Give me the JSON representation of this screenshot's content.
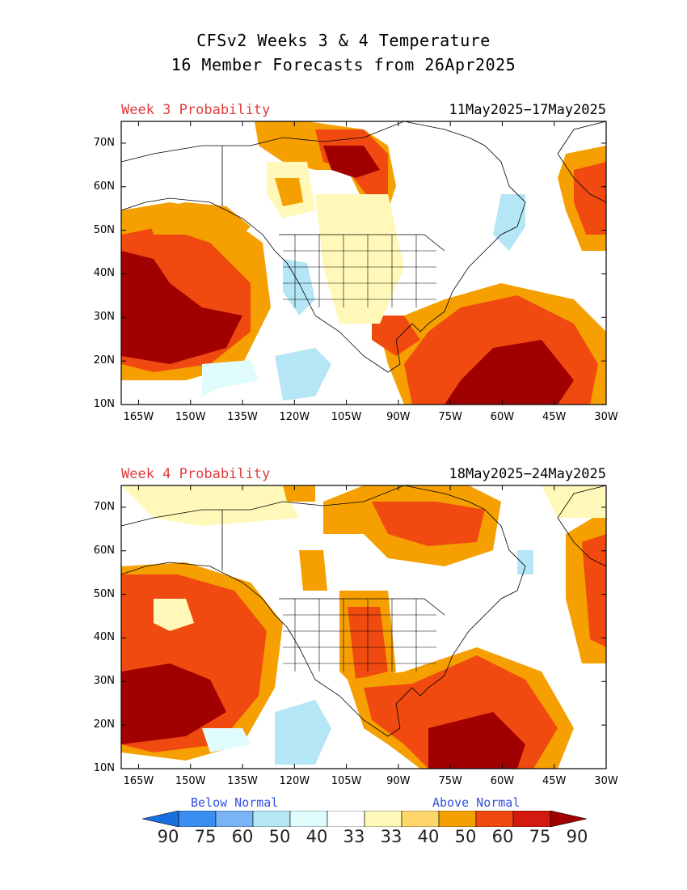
{
  "header": {
    "title_line1": "CFSv2 Weeks 3 & 4 Temperature",
    "title_line2": "16 Member Forecasts from 26Apr2025"
  },
  "panels": [
    {
      "label": "Week 3 Probability",
      "dates": "11May2025−17May2025"
    },
    {
      "label": "Week 4 Probability",
      "dates": "18May2025−24May2025"
    }
  ],
  "axes": {
    "lat_labels": [
      "70N",
      "60N",
      "50N",
      "40N",
      "30N",
      "20N",
      "10N"
    ],
    "lon_labels": [
      "165W",
      "150W",
      "135W",
      "120W",
      "105W",
      "90W",
      "75W",
      "60W",
      "45W",
      "30W"
    ],
    "lat_range": [
      10,
      75
    ],
    "lon_range": [
      -170,
      -30
    ]
  },
  "legend": {
    "below_label": "Below Normal",
    "above_label": "Above Normal",
    "values": [
      "90",
      "75",
      "60",
      "50",
      "40",
      "33",
      "33",
      "40",
      "50",
      "60",
      "75",
      "90"
    ],
    "colors": [
      "#1a6fe0",
      "#3a8ef0",
      "#7ab4f5",
      "#b4e6f5",
      "#e0fcfc",
      "#ffffff",
      "#fff8b8",
      "#ffd66a",
      "#f5a000",
      "#f04a10",
      "#d21a10",
      "#a00000"
    ]
  }
}
